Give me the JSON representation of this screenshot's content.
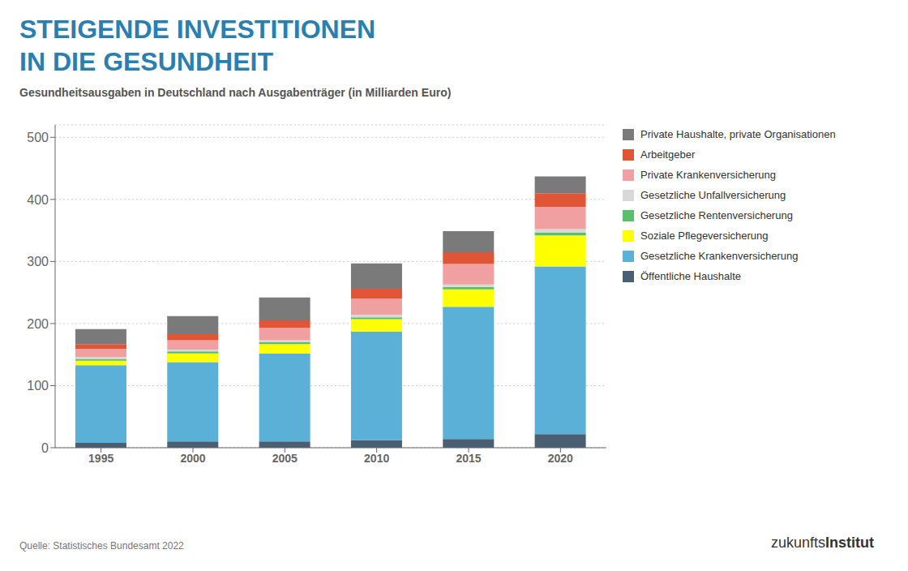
{
  "chart_data": {
    "type": "bar",
    "stacked": true,
    "title": "STEIGENDE INVESTITIONEN\nIN DIE GESUNDHEIT",
    "subtitle": "Gesundheitsausgaben in Deutschland nach Ausgabenträger (in Milliarden Euro)",
    "annotations": [
      "Quelle: Statistisches Bundesamt 2022",
      "zukunfts",
      "Institut"
    ],
    "categories": [
      "1995",
      "2000",
      "2005",
      "2010",
      "2015",
      "2020"
    ],
    "series": [
      {
        "name": "Öffentliche Haushalte",
        "color": "#4a5f72",
        "values": [
          8,
          10,
          10,
          12,
          14,
          22
        ]
      },
      {
        "name": "Gesetzliche Krankenversicherung",
        "color": "#5bb0d8",
        "values": [
          125,
          128,
          142,
          175,
          213,
          270
        ]
      },
      {
        "name": "Soziale Pflegeversicherung",
        "color": "#ffff00",
        "values": [
          7,
          14,
          15,
          20,
          28,
          50
        ]
      },
      {
        "name": "Gesetzliche Rentenversicherung",
        "color": "#5abf6a",
        "values": [
          3,
          3,
          3,
          3,
          4,
          5
        ]
      },
      {
        "name": "Gesetzliche Unfallversicherung",
        "color": "#d8d8d8",
        "values": [
          3,
          3,
          3,
          4,
          4,
          5
        ]
      },
      {
        "name": "Private Krankenversicherung",
        "color": "#f0a0a0",
        "values": [
          13,
          15,
          20,
          26,
          33,
          36
        ]
      },
      {
        "name": "Arbeitgeber",
        "color": "#e05535",
        "values": [
          8,
          10,
          12,
          16,
          19,
          22
        ]
      },
      {
        "name": "Private Haushalte, private Organisationen",
        "color": "#7a7a7a",
        "values": [
          24,
          29,
          37,
          41,
          34,
          27
        ]
      }
    ],
    "ylim": [
      0,
      520
    ],
    "yticks": [
      0,
      100,
      200,
      300,
      400,
      500
    ],
    "grid": true,
    "legend": "right"
  }
}
